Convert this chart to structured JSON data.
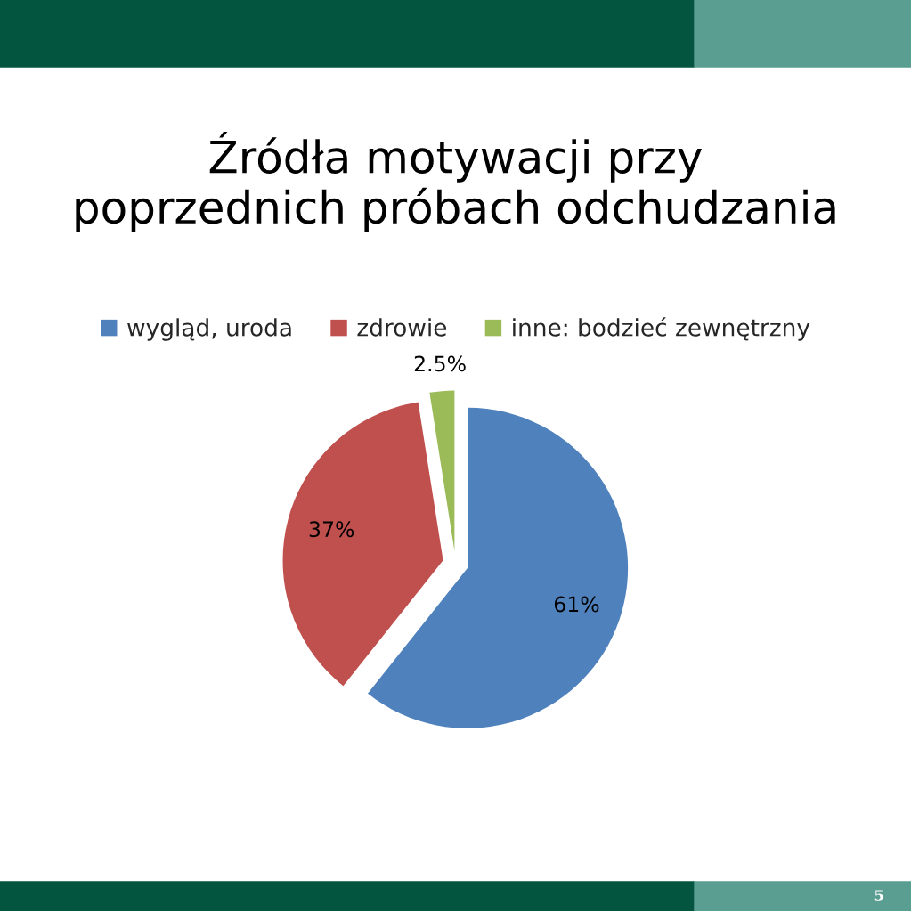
{
  "chart_data": {
    "type": "pie",
    "title": "Źródła motywacji przy\npoprzednich próbach odchudzania",
    "categories": [
      "wygląd, uroda",
      "zdrowie",
      "inne: bodzieć zewnętrzny"
    ],
    "values": [
      61,
      37,
      2.5
    ],
    "colors": [
      "#4f81bd",
      "#c0504d",
      "#9bbb59"
    ],
    "value_labels": [
      "61%",
      "37%",
      "2.5%"
    ],
    "legend": "top",
    "annotations": [
      "5"
    ]
  }
}
